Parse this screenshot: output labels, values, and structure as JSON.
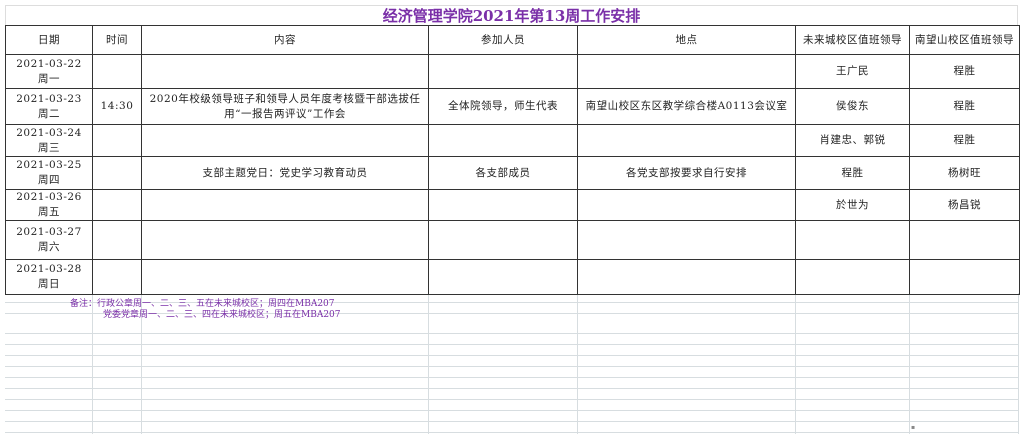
{
  "title": "经济管理学院2021年第13周工作安排",
  "headers": [
    "日期",
    "时间",
    "内容",
    "参加人员",
    "地点",
    "未来城校区值班领导",
    "南望山校区值班领导"
  ],
  "rows": [
    {
      "date": "2021-03-22",
      "weekday": "周一",
      "time": "",
      "content": "",
      "participants": "",
      "location": "",
      "weilaicheng_leader": "王广民",
      "nanwangshan_leader": "程胜"
    },
    {
      "date": "2021-03-23",
      "weekday": "周二",
      "time": "14:30",
      "content": "2020年校级领导班子和领导人员年度考核暨干部选拔任用“一报告两评议”工作会",
      "participants": "全体院领导，师生代表",
      "location": "南望山校区东区教学综合楼A0113会议室",
      "weilaicheng_leader": "侯俊东",
      "nanwangshan_leader": "程胜"
    },
    {
      "date": "2021-03-24",
      "weekday": "周三",
      "time": "",
      "content": "",
      "participants": "",
      "location": "",
      "weilaicheng_leader": "肖建忠、郭锐",
      "nanwangshan_leader": "程胜"
    },
    {
      "date": "2021-03-25",
      "weekday": "周四",
      "time": "",
      "content": "支部主题党日：党史学习教育动员",
      "participants": "各支部成员",
      "location": "各党支部按要求自行安排",
      "weilaicheng_leader": "程胜",
      "nanwangshan_leader": "杨树旺"
    },
    {
      "date": "2021-03-26",
      "weekday": "周五",
      "time": "",
      "content": "",
      "participants": "",
      "location": "",
      "weilaicheng_leader": "於世为",
      "nanwangshan_leader": "杨昌锐"
    },
    {
      "date": "2021-03-27",
      "weekday": "周六",
      "time": "",
      "content": "",
      "participants": "",
      "location": "",
      "weilaicheng_leader": "",
      "nanwangshan_leader": ""
    },
    {
      "date": "2021-03-28",
      "weekday": "周日",
      "time": "",
      "content": "",
      "participants": "",
      "location": "",
      "weilaicheng_leader": "",
      "nanwangshan_leader": ""
    }
  ],
  "notes": [
    "备注：行政公章周一、二、三、五在未来城校区；周四在MBA207",
    "党委党章周一、二、三、四在未来城校区；周五在MBA207"
  ],
  "colors": {
    "title": "#7a2fa8",
    "notes": "#7a2fa8"
  }
}
